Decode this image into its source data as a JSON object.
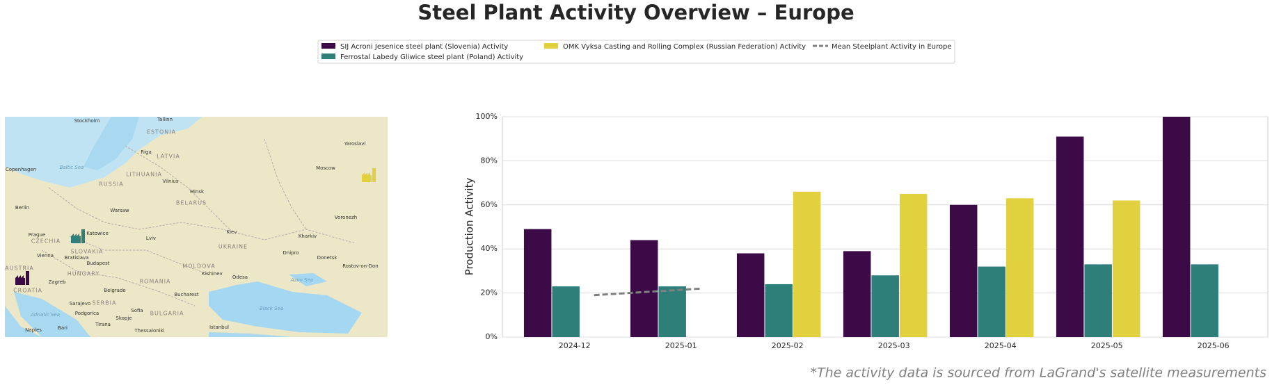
{
  "chart_data": {
    "type": "bar",
    "title": "Steel Plant Activity Overview – Europe",
    "y_label": "Production Activity",
    "categories": [
      "2024-12",
      "2025-01",
      "2025-02",
      "2025-03",
      "2025-04",
      "2025-05",
      "2025-06"
    ],
    "series": [
      {
        "name": "SIJ Acroni Jesenice steel plant (Slovenia) Activity",
        "color": "#3b0a47",
        "values": [
          49,
          44,
          38,
          39,
          60,
          91,
          100
        ]
      },
      {
        "name": "Ferrostal Labedy Gliwice steel plant (Poland) Activity",
        "color": "#2e7f7a",
        "values": [
          23,
          23,
          24,
          28,
          32,
          33,
          33
        ]
      },
      {
        "name": "OMK Vyksa Casting and Rolling Complex (Russian Federation) Activity",
        "color": "#e2d13f",
        "values": [
          null,
          null,
          66,
          65,
          63,
          62,
          null
        ]
      },
      {
        "name": "Mean Steelplant Activity in Europe",
        "color": "#808080",
        "type": "line",
        "dashed": true,
        "values": [
          19,
          22,
          null,
          null,
          null,
          null,
          null
        ]
      }
    ],
    "ylim": [
      0,
      100
    ],
    "yticks": [
      {
        "value": 0,
        "label": "0%"
      },
      {
        "value": 20,
        "label": "20%"
      },
      {
        "value": 40,
        "label": "40%"
      },
      {
        "value": 60,
        "label": "60%"
      },
      {
        "value": 80,
        "label": "80%"
      },
      {
        "value": 100,
        "label": "100%"
      }
    ],
    "grid": true,
    "legend": "top",
    "footnote": "*The activity data is sourced from LaGrand's satellite measurements"
  },
  "map": {
    "labels": [
      "Stockholm",
      "Tallinn",
      "ESTONIA",
      "Riga",
      "LATVIA",
      "Copenhagen",
      "Baltic Sea",
      "LITHUANIA",
      "RUSSIA",
      "Vilnius",
      "Minsk",
      "BELARUS",
      "Moscow",
      "Yaroslavl",
      "Berlin",
      "Warsaw",
      "Voronezh",
      "Prague",
      "CZECHIA",
      "Katowice",
      "Lviv",
      "Kiev",
      "UKRAINE",
      "Kharkiv",
      "Vienna",
      "SLOVAKIA",
      "Bratislava",
      "Budapest",
      "HUNGARY",
      "Dnipro",
      "Donetsk",
      "Rostov-on-Don",
      "MOLDOVA",
      "Kishinev",
      "Odesa",
      "Azov Sea",
      "AUSTRIA",
      "CROATIA",
      "Zagreb",
      "ROMANIA",
      "Belgrade",
      "Bucharest",
      "Black Sea",
      "SERBIA",
      "Sarajevo",
      "BULGARIA",
      "Sofia",
      "Skopje",
      "Adriatic Sea",
      "Podgorica",
      "Tirana",
      "Naples",
      "Bari",
      "Thessaloniki",
      "Istanbul"
    ]
  }
}
